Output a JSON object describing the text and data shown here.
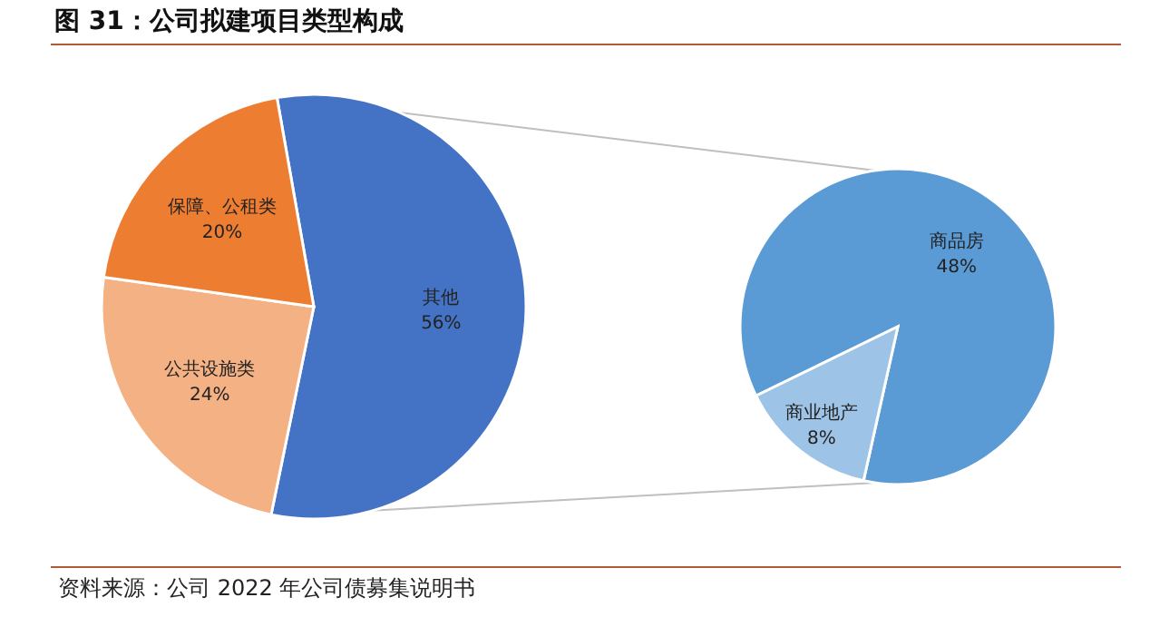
{
  "chart_data": [
    {
      "type": "pie",
      "title": "图 31：公司拟建项目类型构成",
      "categories": [
        "其他",
        "公共设施类",
        "保障、公租类"
      ],
      "values": [
        56,
        24,
        20
      ],
      "colors": [
        "#4472c4",
        "#f4b183",
        "#ed7d31"
      ],
      "value_labels": [
        "56%",
        "24%",
        "20%"
      ],
      "annotations": [
        "资料来源：公司 2022 年公司债募集说明书"
      ]
    },
    {
      "type": "pie",
      "categories": [
        "商品房",
        "商业地产"
      ],
      "values": [
        48,
        8
      ],
      "colors": [
        "#5b9bd5",
        "#9dc3e6"
      ],
      "value_labels": [
        "48%",
        "8%"
      ]
    }
  ]
}
